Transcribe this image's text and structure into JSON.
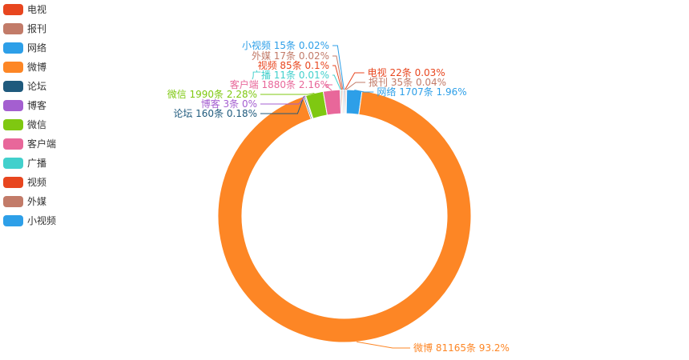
{
  "chart_data": {
    "type": "pie",
    "variant": "donut",
    "legend_position": "top-left",
    "count_unit": "条",
    "slices": [
      {
        "name": "电视",
        "count": 22,
        "percent_label": "0.03%",
        "color": "#e8461f"
      },
      {
        "name": "报刊",
        "count": 35,
        "percent_label": "0.04%",
        "color": "#c27b69"
      },
      {
        "name": "网络",
        "count": 1707,
        "percent_label": "1.96%",
        "color": "#2d9fe8"
      },
      {
        "name": "微博",
        "count": 81165,
        "percent_label": "93.2%",
        "color": "#fd8625"
      },
      {
        "name": "论坛",
        "count": 160,
        "percent_label": "0.18%",
        "color": "#1f5a7d"
      },
      {
        "name": "博客",
        "count": 3,
        "percent_label": "0%",
        "color": "#a45fd0"
      },
      {
        "name": "微信",
        "count": 1990,
        "percent_label": "2.28%",
        "color": "#7fc811"
      },
      {
        "name": "客户端",
        "count": 1880,
        "percent_label": "2.16%",
        "color": "#e8679a"
      },
      {
        "name": "广播",
        "count": 11,
        "percent_label": "0.01%",
        "color": "#42d0cc"
      },
      {
        "name": "视频",
        "count": 85,
        "percent_label": "0.1%",
        "color": "#e8461f"
      },
      {
        "name": "外媒",
        "count": 17,
        "percent_label": "0.02%",
        "color": "#c27b69"
      },
      {
        "name": "小视频",
        "count": 15,
        "percent_label": "0.02%",
        "color": "#2d9fe8"
      }
    ]
  }
}
